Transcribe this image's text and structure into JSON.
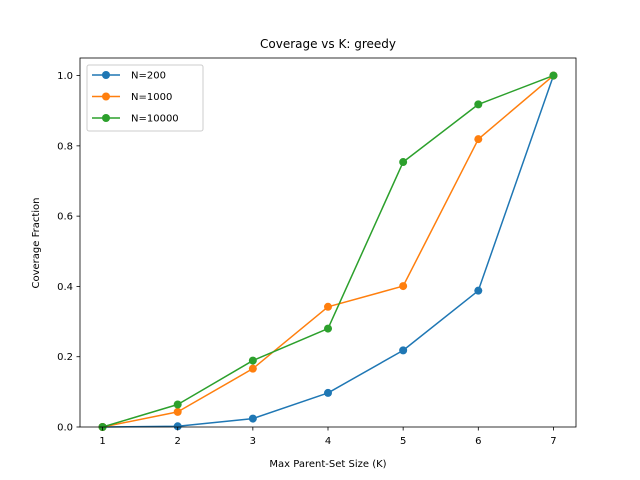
{
  "chart_data": {
    "type": "line",
    "title": "Coverage vs K: greedy",
    "xlabel": "Max Parent-Set Size (K)",
    "ylabel": "Coverage Fraction",
    "x": [
      1,
      2,
      3,
      4,
      5,
      6,
      7
    ],
    "xlim": [
      0.7,
      7.3
    ],
    "ylim": [
      0.0,
      1.05
    ],
    "xticks": [
      "1",
      "2",
      "3",
      "4",
      "5",
      "6",
      "7"
    ],
    "yticks": [
      "0.0",
      "0.2",
      "0.4",
      "0.6",
      "0.8",
      "1.0"
    ],
    "grid": false,
    "legend_position": "top-left",
    "series": [
      {
        "name": "N=200",
        "color": "#1f77b4",
        "values": [
          0.0,
          0.002,
          0.024,
          0.097,
          0.218,
          0.388,
          1.0
        ]
      },
      {
        "name": "N=1000",
        "color": "#ff7f0e",
        "values": [
          0.0,
          0.043,
          0.166,
          0.342,
          0.401,
          0.819,
          1.0
        ]
      },
      {
        "name": "N=10000",
        "color": "#2ca02c",
        "values": [
          0.0,
          0.064,
          0.189,
          0.28,
          0.754,
          0.918,
          1.0
        ]
      }
    ]
  }
}
